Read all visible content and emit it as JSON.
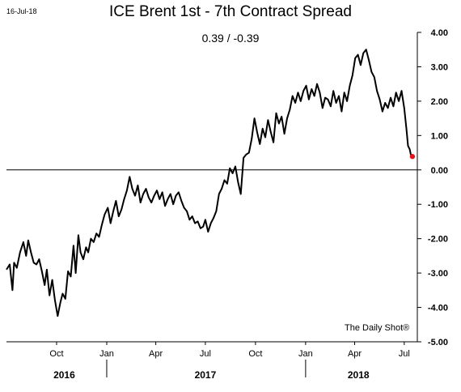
{
  "header": {
    "date": "16-Jul-18",
    "title": "ICE Brent 1st - 7th Contract Spread",
    "readout": "0.39  /  -0.39"
  },
  "footer": {
    "source": "The Daily Shot®"
  },
  "colors": {
    "line": "#000000",
    "last_point": "#e8121c",
    "zero_line": "#000000"
  },
  "chart_data": {
    "type": "line",
    "title": "ICE Brent 1st - 7th Contract Spread",
    "xlabel": "",
    "ylabel": "",
    "ylim": [
      -5.0,
      4.0
    ],
    "xlim": [
      "2016-07-01",
      "2018-07-25"
    ],
    "y_ticks": [
      "4.00",
      "3.00",
      "2.00",
      "1.00",
      "0.00",
      "-1.00",
      "-2.00",
      "-3.00",
      "-4.00",
      "-5.00"
    ],
    "x_ticks": [
      {
        "date": "2016-10-01",
        "label": "Oct"
      },
      {
        "date": "2017-01-01",
        "label": "Jan"
      },
      {
        "date": "2017-04-01",
        "label": "Apr"
      },
      {
        "date": "2017-07-01",
        "label": "Jul"
      },
      {
        "date": "2017-10-01",
        "label": "Oct"
      },
      {
        "date": "2018-01-01",
        "label": "Jan"
      },
      {
        "date": "2018-04-01",
        "label": "Apr"
      },
      {
        "date": "2018-07-01",
        "label": "Jul"
      }
    ],
    "years": [
      {
        "label": "2016",
        "center": "2016-10-15"
      },
      {
        "label": "2017",
        "center": "2017-07-01"
      },
      {
        "label": "2018",
        "center": "2018-04-08"
      }
    ],
    "year_separators": [
      "2017-01-01",
      "2018-01-01"
    ],
    "reference_line": 0,
    "grid": false,
    "series": [
      {
        "x": [
          "2016-07-01",
          "2016-07-07",
          "2016-07-12",
          "2016-07-15",
          "2016-07-20",
          "2016-07-26",
          "2016-08-01",
          "2016-08-06",
          "2016-08-10",
          "2016-08-15",
          "2016-08-20",
          "2016-08-25",
          "2016-08-30",
          "2016-09-04",
          "2016-09-09",
          "2016-09-13",
          "2016-09-18",
          "2016-09-23",
          "2016-09-28",
          "2016-10-03",
          "2016-10-08",
          "2016-10-12",
          "2016-10-17",
          "2016-10-22",
          "2016-10-27",
          "2016-11-01",
          "2016-11-05",
          "2016-11-10",
          "2016-11-14",
          "2016-11-19",
          "2016-11-24",
          "2016-11-28",
          "2016-12-03",
          "2016-12-08",
          "2016-12-13",
          "2016-12-18",
          "2016-12-23",
          "2016-12-28",
          "2017-01-03",
          "2017-01-08",
          "2017-01-13",
          "2017-01-18",
          "2017-01-23",
          "2017-01-28",
          "2017-02-02",
          "2017-02-07",
          "2017-02-12",
          "2017-02-17",
          "2017-02-22",
          "2017-02-27",
          "2017-03-04",
          "2017-03-09",
          "2017-03-14",
          "2017-03-19",
          "2017-03-24",
          "2017-03-29",
          "2017-04-03",
          "2017-04-08",
          "2017-04-13",
          "2017-04-18",
          "2017-04-23",
          "2017-04-28",
          "2017-05-03",
          "2017-05-08",
          "2017-05-13",
          "2017-05-18",
          "2017-05-23",
          "2017-05-28",
          "2017-06-02",
          "2017-06-07",
          "2017-06-12",
          "2017-06-17",
          "2017-06-22",
          "2017-06-27",
          "2017-07-01",
          "2017-07-06",
          "2017-07-11",
          "2017-07-16",
          "2017-07-21",
          "2017-07-26",
          "2017-07-31",
          "2017-08-05",
          "2017-08-10",
          "2017-08-15",
          "2017-08-20",
          "2017-08-25",
          "2017-08-30",
          "2017-09-04",
          "2017-09-09",
          "2017-09-14",
          "2017-09-19",
          "2017-09-24",
          "2017-09-29",
          "2017-10-04",
          "2017-10-09",
          "2017-10-14",
          "2017-10-19",
          "2017-10-24",
          "2017-10-29",
          "2017-11-03",
          "2017-11-08",
          "2017-11-13",
          "2017-11-18",
          "2017-11-23",
          "2017-11-28",
          "2017-12-03",
          "2017-12-08",
          "2017-12-13",
          "2017-12-18",
          "2017-12-23",
          "2017-12-28",
          "2018-01-02",
          "2018-01-07",
          "2018-01-12",
          "2018-01-17",
          "2018-01-22",
          "2018-01-27",
          "2018-02-01",
          "2018-02-06",
          "2018-02-11",
          "2018-02-16",
          "2018-02-21",
          "2018-02-26",
          "2018-03-03",
          "2018-03-08",
          "2018-03-13",
          "2018-03-18",
          "2018-03-23",
          "2018-03-28",
          "2018-04-02",
          "2018-04-07",
          "2018-04-12",
          "2018-04-17",
          "2018-04-22",
          "2018-04-27",
          "2018-05-02",
          "2018-05-07",
          "2018-05-12",
          "2018-05-17",
          "2018-05-22",
          "2018-05-27",
          "2018-06-01",
          "2018-06-06",
          "2018-06-11",
          "2018-06-16",
          "2018-06-21",
          "2018-06-26",
          "2018-07-01",
          "2018-07-05",
          "2018-07-08",
          "2018-07-11",
          "2018-07-13",
          "2018-07-16"
        ],
        "values": [
          -2.9,
          -2.75,
          -3.5,
          -2.7,
          -2.85,
          -2.4,
          -2.1,
          -2.5,
          -2.05,
          -2.4,
          -2.7,
          -2.75,
          -2.6,
          -2.95,
          -3.35,
          -2.9,
          -3.65,
          -3.2,
          -3.8,
          -4.25,
          -3.85,
          -3.6,
          -3.75,
          -2.95,
          -3.1,
          -2.2,
          -3.0,
          -1.9,
          -2.4,
          -2.6,
          -2.25,
          -2.4,
          -2.0,
          -2.1,
          -1.85,
          -1.95,
          -1.6,
          -1.3,
          -1.1,
          -1.55,
          -1.2,
          -0.9,
          -1.35,
          -1.15,
          -0.85,
          -0.6,
          -0.2,
          -0.55,
          -0.75,
          -0.45,
          -0.95,
          -0.7,
          -0.55,
          -0.8,
          -0.95,
          -0.75,
          -0.6,
          -0.85,
          -0.65,
          -1.05,
          -0.85,
          -0.7,
          -1.0,
          -0.75,
          -0.65,
          -0.9,
          -1.1,
          -1.2,
          -1.45,
          -1.35,
          -1.55,
          -1.5,
          -1.7,
          -1.65,
          -1.45,
          -1.8,
          -1.55,
          -1.4,
          -1.2,
          -0.7,
          -0.55,
          -0.3,
          -0.4,
          0.05,
          -0.1,
          0.1,
          -0.35,
          -0.7,
          0.35,
          0.45,
          0.5,
          0.9,
          1.5,
          1.1,
          0.75,
          1.2,
          0.95,
          1.45,
          1.1,
          0.8,
          1.65,
          1.35,
          1.55,
          1.05,
          1.5,
          1.75,
          2.15,
          1.95,
          2.25,
          2.0,
          2.3,
          2.45,
          2.05,
          2.35,
          2.15,
          2.5,
          2.25,
          1.8,
          2.1,
          2.05,
          1.85,
          2.3,
          1.95,
          2.15,
          1.7,
          2.25,
          2.0,
          2.45,
          2.75,
          3.25,
          3.35,
          3.05,
          3.4,
          3.5,
          3.2,
          2.85,
          2.7,
          2.3,
          2.05,
          1.7,
          1.95,
          1.8,
          2.1,
          1.85,
          2.25,
          2.0,
          2.3,
          1.8,
          1.2,
          0.7,
          0.6,
          0.45,
          0.39
        ]
      }
    ],
    "last_point": {
      "x": "2018-07-16",
      "y": 0.39
    }
  }
}
